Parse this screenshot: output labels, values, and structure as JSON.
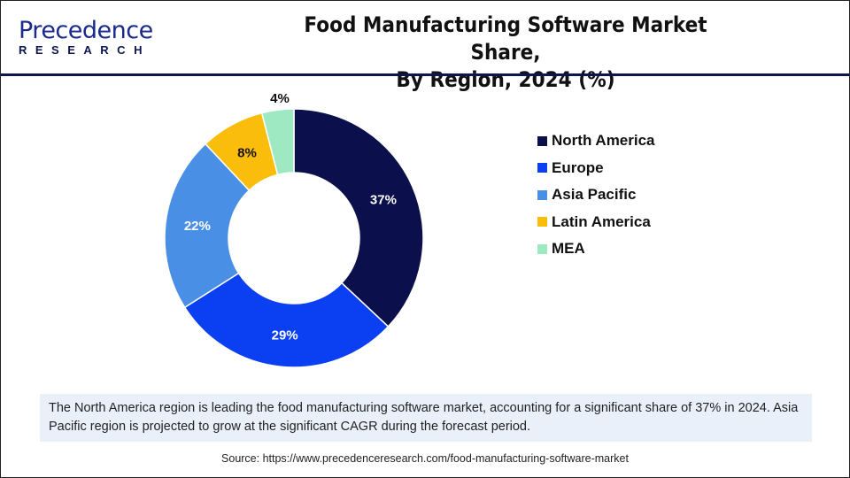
{
  "logo": {
    "word": "Precedence",
    "sub": "RESEARCH"
  },
  "header": {
    "title_line1": "Food Manufacturing Software Market Share,",
    "title_line2": "By Region, 2024 (%)"
  },
  "chart_data": {
    "type": "pie",
    "donut": true,
    "categories": [
      "North America",
      "Europe",
      "Asia Pacific",
      "Latin America",
      "MEA"
    ],
    "values": [
      37,
      29,
      22,
      8,
      4
    ],
    "labels": [
      "37%",
      "29%",
      "22%",
      "8%",
      "4%"
    ],
    "colors": [
      "#0b0f4c",
      "#0a3ff2",
      "#4a8fe6",
      "#fbbd0c",
      "#9ee9c2"
    ],
    "legend_position": "right"
  },
  "note": "The North America region is leading the food manufacturing software market, accounting for a significant share of 37% in 2024. Asia Pacific region is projected to grow at the significant CAGR during the forecast period.",
  "source": "Source: https://www.precedenceresearch.com/food-manufacturing-software-market"
}
